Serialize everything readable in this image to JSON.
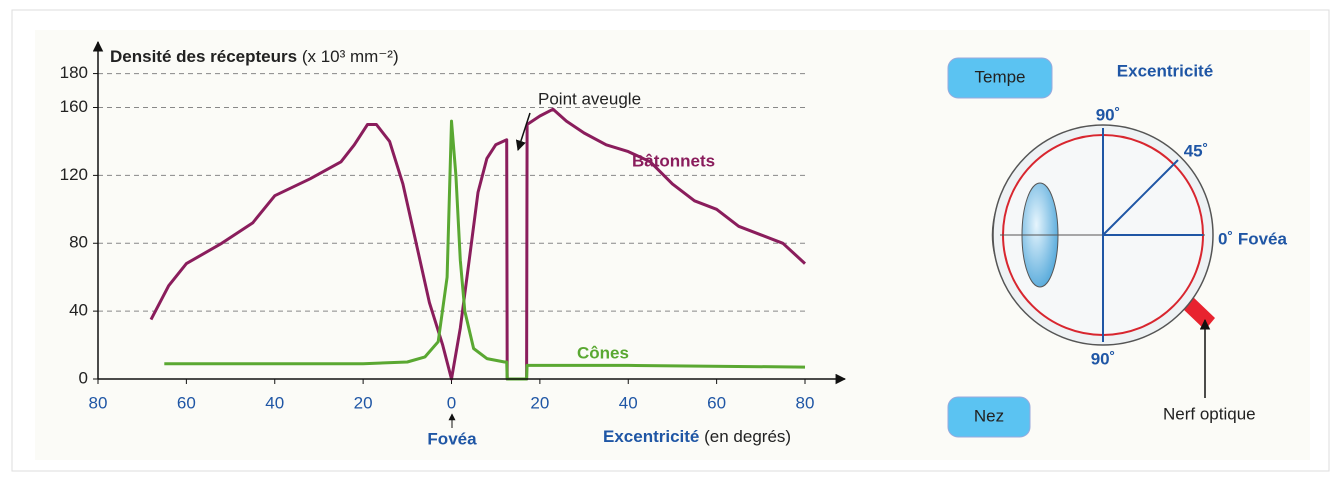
{
  "chart_data": {
    "type": "line",
    "y_label": "Densité des récepteurs",
    "y_unit": "(x 10³ mm⁻²)",
    "x_label": "Excentricité",
    "x_unit": "(en degrés)",
    "annotations": {
      "blind_spot": "Point aveugle",
      "fovea": "Fovéa"
    },
    "xlim": [
      -80,
      80
    ],
    "xticks": [
      {
        "value": -80,
        "label": "80"
      },
      {
        "value": -60,
        "label": "60"
      },
      {
        "value": -40,
        "label": "40"
      },
      {
        "value": -20,
        "label": "20"
      },
      0,
      20,
      40,
      60,
      80
    ],
    "ylim": [
      0,
      188
    ],
    "yticks": [
      0,
      40,
      80,
      120,
      160,
      180
    ],
    "grid": true,
    "series": [
      {
        "name": "Bâtonnets",
        "color": "#8a1d5c",
        "x": [
          -68,
          -64,
          -60,
          -52,
          -45,
          -40,
          -32,
          -25,
          -22,
          -19,
          -17,
          -14,
          -11,
          -8,
          -5,
          -2,
          0,
          2,
          4,
          6,
          8,
          10,
          12.5,
          12.6,
          17,
          17.1,
          20,
          23,
          26,
          30,
          35,
          40,
          45,
          50,
          55,
          60,
          65,
          70,
          75,
          80
        ],
        "values": [
          35,
          55,
          68,
          80,
          92,
          108,
          118,
          128,
          138,
          150,
          150,
          140,
          115,
          80,
          45,
          20,
          0,
          30,
          70,
          110,
          130,
          138,
          141,
          0,
          0,
          150,
          155,
          159,
          152,
          145,
          138,
          134,
          128,
          115,
          105,
          100,
          90,
          85,
          80,
          68
        ]
      },
      {
        "name": "Cônes",
        "color": "#5aa832",
        "x": [
          -65,
          -20,
          -10,
          -6,
          -3,
          -1,
          0,
          1,
          2,
          3,
          5,
          8,
          12,
          12.5,
          12.6,
          17,
          17.1,
          40,
          80
        ],
        "values": [
          9,
          9,
          10,
          13,
          22,
          60,
          152,
          120,
          70,
          40,
          18,
          12,
          10,
          10,
          0,
          0,
          8,
          8,
          7
        ]
      }
    ]
  },
  "diagram": {
    "top_button": "Tempe",
    "bottom_button": "Nez",
    "title": "Excentricité",
    "angle_top": "90˚",
    "angle_45": "45˚",
    "angle_0": "0˚ Fovéa",
    "angle_bottom": "90˚",
    "nerve": "Nerf optique"
  }
}
